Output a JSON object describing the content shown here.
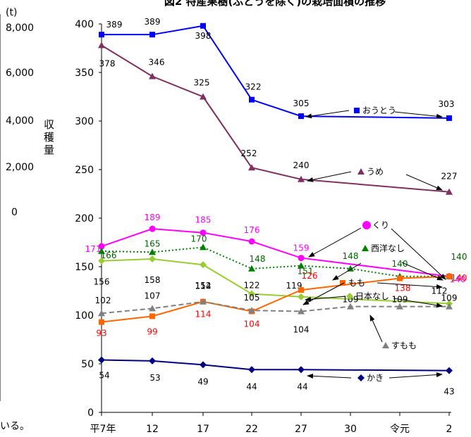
{
  "chart_data": {
    "type": "line",
    "title": "図2 特産果樹(ぶどうを除く)の栽培面積の推移",
    "categories": [
      "平7年",
      "12",
      "17",
      "22",
      "27",
      "30",
      "令元",
      "2"
    ],
    "ylim": [
      0,
      400
    ],
    "yticks": [
      "0",
      "50",
      "100",
      "150",
      "200",
      "250",
      "300",
      "350",
      "400"
    ],
    "grid": false,
    "series": [
      {
        "name": "おうとう",
        "color": "#0000ff",
        "marker": "square",
        "dash": "solid",
        "values": [
          389,
          389,
          398,
          322,
          305,
          null,
          null,
          303
        ],
        "labels": [
          "389",
          "389",
          "398",
          "322",
          "305",
          "",
          "",
          "303"
        ],
        "labelColor": "#000000"
      },
      {
        "name": "うめ",
        "color": "#7f3060",
        "marker": "triangle",
        "dash": "solid",
        "values": [
          378,
          346,
          325,
          252,
          240,
          null,
          null,
          227
        ],
        "labels": [
          "378",
          "346",
          "325",
          "252",
          "240",
          "",
          "",
          "227"
        ],
        "labelColor": "#000000"
      },
      {
        "name": "くり",
        "color": "#ff00ff",
        "marker": "circle",
        "dash": "solid",
        "values": [
          171,
          189,
          185,
          176,
          159,
          null,
          null,
          140
        ],
        "labels": [
          "171",
          "189",
          "185",
          "176",
          "159",
          "",
          "",
          "140"
        ],
        "labelColor": "#ff00ff"
      },
      {
        "name": "西洋なし",
        "color": "#008000",
        "marker": "triangle",
        "dash": "dot",
        "values": [
          166,
          165,
          170,
          148,
          151,
          148,
          140,
          140
        ],
        "labels": [
          "166",
          "165",
          "170",
          "148",
          "151",
          "148",
          "140",
          "140"
        ],
        "labelColor": "#006400"
      },
      {
        "name": "日本なし",
        "color": "#99cc33",
        "marker": "diamond",
        "dash": "solid",
        "values": [
          156,
          158,
          152,
          122,
          119,
          null,
          null,
          112
        ],
        "labels": [
          "156",
          "158",
          "152",
          "122",
          "119",
          "",
          "",
          "112"
        ],
        "labelColor": "#000000"
      },
      {
        "name": "もも",
        "color": "#ff6600",
        "marker": "square",
        "dash": "solid",
        "values": [
          93,
          99,
          114,
          104,
          126,
          null,
          138,
          140
        ],
        "labels": [
          "93",
          "99",
          "114",
          "104",
          "126",
          "",
          "138",
          "140"
        ],
        "labelColor": "#ff0000"
      },
      {
        "name": "すもも",
        "color": "#808080",
        "marker": "triangle",
        "dash": "dash",
        "values": [
          102,
          107,
          114,
          105,
          104,
          109,
          109,
          109
        ],
        "labels": [
          "102",
          "107",
          "114",
          "105",
          "104",
          "109",
          "109",
          "109"
        ],
        "labelColor": "#000000"
      },
      {
        "name": "かき",
        "color": "#000080",
        "marker": "diamond",
        "dash": "solid",
        "values": [
          54,
          53,
          49,
          44,
          44,
          null,
          null,
          43
        ],
        "labels": [
          "54",
          "53",
          "49",
          "44",
          "44",
          "",
          "",
          "43"
        ],
        "labelColor": "#000000"
      }
    ]
  },
  "background_chart": {
    "unit": "(t)",
    "yticks": [
      "8,000",
      "6,000",
      "4,000",
      "2,000",
      "0"
    ],
    "ylabel": "収穫量",
    "text_fragment": "いる。"
  }
}
